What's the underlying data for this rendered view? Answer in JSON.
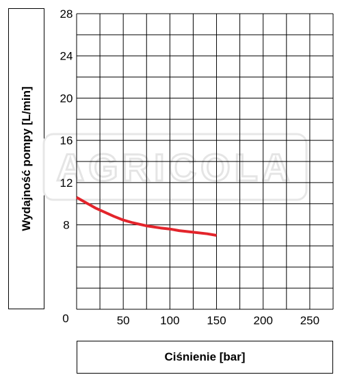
{
  "chart_data": {
    "type": "line",
    "title": "",
    "xlabel": "Ciśnienie [bar]",
    "ylabel": "Wydajność pompy [L/min]",
    "xlim": [
      0,
      275
    ],
    "ylim": [
      0,
      28
    ],
    "x_ticks": [
      0,
      50,
      100,
      150,
      200,
      250
    ],
    "y_ticks": [
      8,
      12,
      16,
      20,
      24,
      28
    ],
    "grid": true,
    "watermark": "AGRICOLA",
    "series": [
      {
        "color": "#e3242b",
        "x": [
          0,
          10,
          20,
          30,
          40,
          50,
          60,
          75,
          90,
          100,
          110,
          125,
          140,
          150
        ],
        "y": [
          10.6,
          10.1,
          9.6,
          9.2,
          8.8,
          8.45,
          8.2,
          7.9,
          7.7,
          7.6,
          7.45,
          7.3,
          7.15,
          7.0
        ]
      }
    ]
  }
}
